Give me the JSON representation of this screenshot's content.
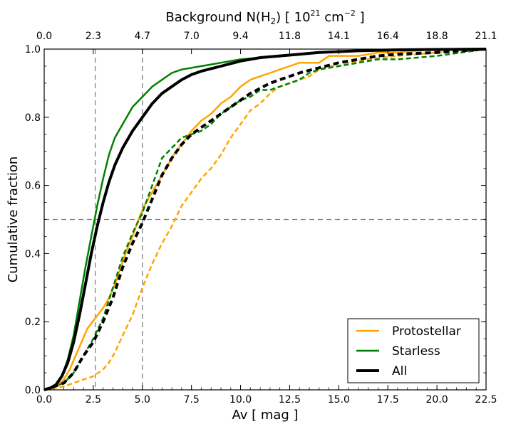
{
  "chart_data": {
    "type": "line",
    "xlabel": "Av [ mag ]",
    "ylabel": "Cumulative fraction",
    "top_axis": {
      "label_prefix": "Background N(H",
      "label_sub": "2",
      "label_mid": ")  [ 10",
      "label_sup1": "21",
      "label_unit": "  cm",
      "label_sup2": "−2",
      "label_suffix": "  ]",
      "tick_labels": [
        "0.0",
        "2.3",
        "4.7",
        "7.0",
        "9.4",
        "11.8",
        "14.1",
        "16.4",
        "18.8",
        "21.1"
      ]
    },
    "xlim": [
      0,
      22.5
    ],
    "ylim": [
      0,
      1
    ],
    "x_ticks": [
      0,
      2.5,
      5,
      7.5,
      10,
      12.5,
      15,
      17.5,
      20,
      22.5
    ],
    "x_tick_labels": [
      "0.0",
      "2.5",
      "5.0",
      "7.5",
      "10.0",
      "12.5",
      "15.0",
      "17.5",
      "20.0",
      "22.5"
    ],
    "y_ticks": [
      0,
      0.2,
      0.4,
      0.6,
      0.8,
      1.0
    ],
    "y_tick_labels": [
      "0.0",
      "0.2",
      "0.4",
      "0.6",
      "0.8",
      "1.0"
    ],
    "reference_lines": {
      "vertical_x": [
        2.6,
        5.0
      ],
      "horizontal_y": [
        0.5
      ]
    },
    "legend_position": "lower-right",
    "legend": [
      {
        "label": "Protostellar",
        "color": "#ffa500",
        "width": 2.5
      },
      {
        "label": "Starless",
        "color": "#008000",
        "width": 2.5
      },
      {
        "label": "All",
        "color": "#000000",
        "width": 4
      }
    ],
    "series": [
      {
        "name": "Protostellar",
        "color": "#ffa500",
        "style": "solid",
        "width": 2.5,
        "points": [
          [
            0,
            0
          ],
          [
            0.3,
            0.005
          ],
          [
            0.6,
            0.01
          ],
          [
            1.0,
            0.03
          ],
          [
            1.3,
            0.06
          ],
          [
            1.6,
            0.1
          ],
          [
            1.9,
            0.14
          ],
          [
            2.2,
            0.18
          ],
          [
            2.6,
            0.21
          ],
          [
            3.0,
            0.24
          ],
          [
            3.3,
            0.27
          ],
          [
            3.6,
            0.31
          ],
          [
            3.9,
            0.36
          ],
          [
            4.2,
            0.41
          ],
          [
            4.5,
            0.45
          ],
          [
            4.8,
            0.5
          ],
          [
            5.1,
            0.54
          ],
          [
            5.4,
            0.57
          ],
          [
            5.8,
            0.61
          ],
          [
            6.2,
            0.65
          ],
          [
            6.6,
            0.69
          ],
          [
            7.0,
            0.72
          ],
          [
            7.5,
            0.76
          ],
          [
            8.0,
            0.79
          ],
          [
            8.5,
            0.81
          ],
          [
            9.0,
            0.84
          ],
          [
            9.5,
            0.86
          ],
          [
            10.0,
            0.89
          ],
          [
            10.5,
            0.91
          ],
          [
            11.0,
            0.92
          ],
          [
            11.5,
            0.93
          ],
          [
            12.0,
            0.94
          ],
          [
            12.5,
            0.95
          ],
          [
            13.0,
            0.96
          ],
          [
            13.5,
            0.96
          ],
          [
            14.0,
            0.96
          ],
          [
            14.5,
            0.98
          ],
          [
            15.0,
            0.98
          ],
          [
            16.0,
            0.98
          ],
          [
            17.0,
            0.99
          ],
          [
            18.0,
            0.99
          ],
          [
            20.0,
            1.0
          ],
          [
            22.5,
            1.0
          ]
        ]
      },
      {
        "name": "",
        "color": "#ffa500",
        "style": "dashed",
        "width": 2.5,
        "points": [
          [
            0,
            0
          ],
          [
            1.0,
            0.01
          ],
          [
            1.5,
            0.02
          ],
          [
            2.0,
            0.03
          ],
          [
            2.5,
            0.04
          ],
          [
            3.0,
            0.06
          ],
          [
            3.3,
            0.08
          ],
          [
            3.6,
            0.11
          ],
          [
            4.0,
            0.16
          ],
          [
            4.5,
            0.22
          ],
          [
            5.0,
            0.3
          ],
          [
            5.5,
            0.37
          ],
          [
            6.0,
            0.43
          ],
          [
            6.5,
            0.48
          ],
          [
            7.0,
            0.54
          ],
          [
            7.5,
            0.58
          ],
          [
            8.0,
            0.62
          ],
          [
            8.5,
            0.65
          ],
          [
            9.0,
            0.69
          ],
          [
            9.5,
            0.74
          ],
          [
            10.0,
            0.78
          ],
          [
            10.5,
            0.82
          ],
          [
            11.0,
            0.84
          ],
          [
            11.5,
            0.87
          ],
          [
            12.0,
            0.89
          ],
          [
            12.5,
            0.9
          ],
          [
            13.0,
            0.91
          ],
          [
            13.5,
            0.92
          ],
          [
            14.0,
            0.94
          ],
          [
            14.5,
            0.95
          ],
          [
            15.0,
            0.95
          ],
          [
            15.5,
            0.96
          ],
          [
            16.5,
            0.97
          ],
          [
            18.0,
            0.98
          ],
          [
            20.0,
            0.99
          ],
          [
            22.5,
            1.0
          ]
        ]
      },
      {
        "name": "Starless",
        "color": "#008000",
        "style": "solid",
        "width": 2.5,
        "points": [
          [
            0,
            0
          ],
          [
            0.3,
            0.005
          ],
          [
            0.6,
            0.015
          ],
          [
            0.9,
            0.04
          ],
          [
            1.2,
            0.09
          ],
          [
            1.5,
            0.16
          ],
          [
            1.8,
            0.26
          ],
          [
            2.1,
            0.36
          ],
          [
            2.4,
            0.45
          ],
          [
            2.7,
            0.54
          ],
          [
            3.0,
            0.62
          ],
          [
            3.3,
            0.69
          ],
          [
            3.6,
            0.74
          ],
          [
            4.0,
            0.78
          ],
          [
            4.5,
            0.83
          ],
          [
            5.0,
            0.86
          ],
          [
            5.5,
            0.89
          ],
          [
            6.0,
            0.91
          ],
          [
            6.5,
            0.93
          ],
          [
            7.0,
            0.94
          ],
          [
            8.0,
            0.95
          ],
          [
            9.0,
            0.96
          ],
          [
            10.0,
            0.97
          ],
          [
            12.0,
            0.98
          ],
          [
            14.0,
            0.99
          ],
          [
            16.0,
            0.995
          ],
          [
            22.5,
            1.0
          ]
        ]
      },
      {
        "name": "",
        "color": "#008000",
        "style": "dashed",
        "width": 2.5,
        "points": [
          [
            0,
            0
          ],
          [
            1.0,
            0.02
          ],
          [
            1.5,
            0.05
          ],
          [
            2.0,
            0.1
          ],
          [
            2.5,
            0.15
          ],
          [
            3.0,
            0.21
          ],
          [
            3.5,
            0.3
          ],
          [
            4.0,
            0.39
          ],
          [
            4.5,
            0.46
          ],
          [
            5.0,
            0.52
          ],
          [
            5.5,
            0.6
          ],
          [
            6.0,
            0.68
          ],
          [
            6.5,
            0.71
          ],
          [
            7.0,
            0.74
          ],
          [
            7.5,
            0.75
          ],
          [
            8.0,
            0.76
          ],
          [
            8.5,
            0.78
          ],
          [
            9.0,
            0.81
          ],
          [
            9.5,
            0.83
          ],
          [
            10.0,
            0.85
          ],
          [
            10.5,
            0.86
          ],
          [
            11.0,
            0.88
          ],
          [
            11.5,
            0.88
          ],
          [
            12.0,
            0.89
          ],
          [
            12.5,
            0.9
          ],
          [
            13.0,
            0.91
          ],
          [
            13.5,
            0.93
          ],
          [
            14.0,
            0.94
          ],
          [
            15.0,
            0.95
          ],
          [
            16.0,
            0.96
          ],
          [
            17.0,
            0.97
          ],
          [
            18.0,
            0.97
          ],
          [
            20.0,
            0.98
          ],
          [
            22.5,
            1.0
          ]
        ]
      },
      {
        "name": "All",
        "color": "#000000",
        "style": "solid",
        "width": 4,
        "points": [
          [
            0,
            0
          ],
          [
            0.3,
            0.005
          ],
          [
            0.6,
            0.015
          ],
          [
            0.9,
            0.04
          ],
          [
            1.2,
            0.08
          ],
          [
            1.5,
            0.14
          ],
          [
            1.8,
            0.22
          ],
          [
            2.1,
            0.31
          ],
          [
            2.4,
            0.4
          ],
          [
            2.7,
            0.48
          ],
          [
            3.0,
            0.55
          ],
          [
            3.3,
            0.61
          ],
          [
            3.6,
            0.66
          ],
          [
            4.0,
            0.71
          ],
          [
            4.5,
            0.76
          ],
          [
            5.0,
            0.8
          ],
          [
            5.5,
            0.84
          ],
          [
            6.0,
            0.87
          ],
          [
            6.5,
            0.89
          ],
          [
            7.0,
            0.91
          ],
          [
            7.5,
            0.925
          ],
          [
            8.0,
            0.935
          ],
          [
            9.0,
            0.95
          ],
          [
            10.0,
            0.965
          ],
          [
            11.0,
            0.975
          ],
          [
            12.0,
            0.98
          ],
          [
            13.0,
            0.985
          ],
          [
            14.0,
            0.99
          ],
          [
            16.0,
            0.995
          ],
          [
            18.0,
            0.998
          ],
          [
            22.5,
            1.0
          ]
        ]
      },
      {
        "name": "",
        "color": "#000000",
        "style": "dashed",
        "width": 4,
        "points": [
          [
            0,
            0
          ],
          [
            1.0,
            0.02
          ],
          [
            1.5,
            0.05
          ],
          [
            2.0,
            0.1
          ],
          [
            2.5,
            0.14
          ],
          [
            3.0,
            0.2
          ],
          [
            3.5,
            0.27
          ],
          [
            4.0,
            0.36
          ],
          [
            4.5,
            0.43
          ],
          [
            5.0,
            0.49
          ],
          [
            5.5,
            0.56
          ],
          [
            6.0,
            0.63
          ],
          [
            6.5,
            0.68
          ],
          [
            7.0,
            0.72
          ],
          [
            7.5,
            0.75
          ],
          [
            8.0,
            0.77
          ],
          [
            8.5,
            0.79
          ],
          [
            9.0,
            0.81
          ],
          [
            9.5,
            0.83
          ],
          [
            10.0,
            0.85
          ],
          [
            10.5,
            0.87
          ],
          [
            11.0,
            0.885
          ],
          [
            11.5,
            0.9
          ],
          [
            12.0,
            0.91
          ],
          [
            12.5,
            0.92
          ],
          [
            13.0,
            0.93
          ],
          [
            14.0,
            0.945
          ],
          [
            15.0,
            0.96
          ],
          [
            16.0,
            0.97
          ],
          [
            17.0,
            0.98
          ],
          [
            18.0,
            0.985
          ],
          [
            20.0,
            0.99
          ],
          [
            22.5,
            1.0
          ]
        ]
      }
    ]
  }
}
